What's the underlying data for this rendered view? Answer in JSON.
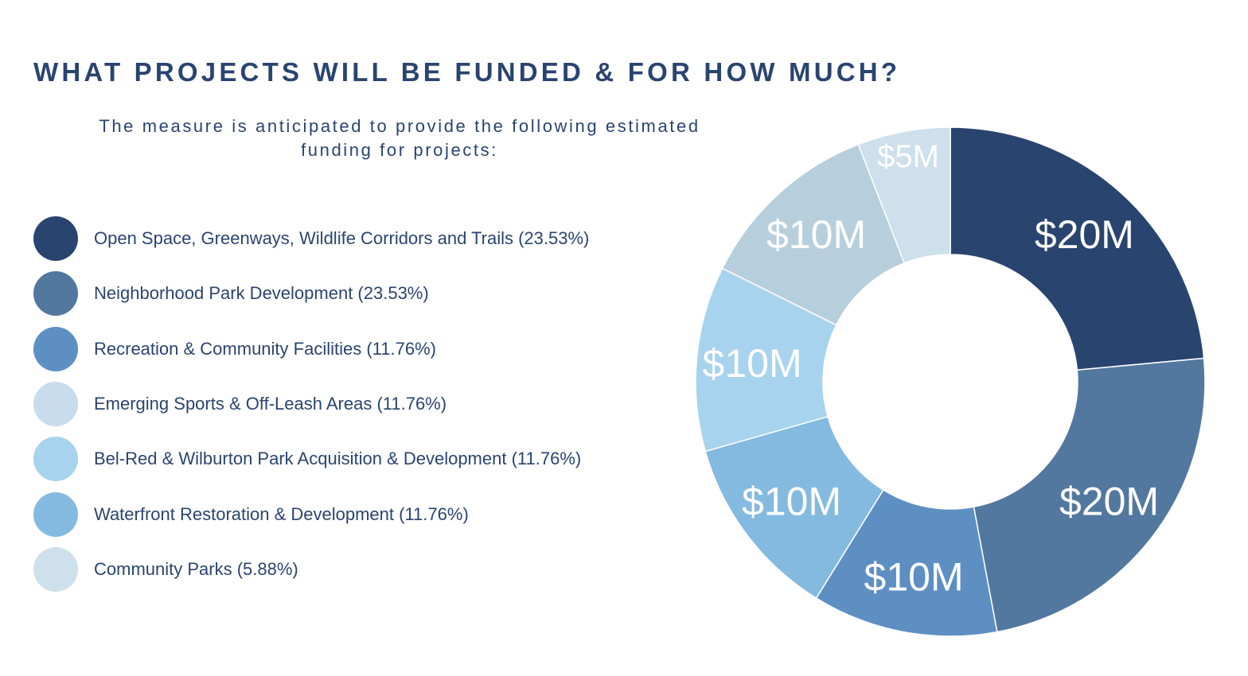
{
  "title": "WHAT PROJECTS WILL BE FUNDED & FOR HOW MUCH?",
  "subtitle": "The measure is anticipated to provide the following estimated funding for projects:",
  "chart_data": {
    "type": "pie",
    "donut": true,
    "title": "",
    "legend_position": "left",
    "slices": [
      {
        "label": "Open Space, Greenways, Wildlife Corridors and Trails (23.53%)",
        "value": 20,
        "value_label": "$20M",
        "percent": 23.53,
        "color": "#2a4470"
      },
      {
        "label": "Neighborhood Park Development (23.53%)",
        "value": 20,
        "value_label": "$20M",
        "percent": 23.53,
        "color": "#53789f"
      },
      {
        "label": "Recreation & Community Facilities (11.76%)",
        "value": 10,
        "value_label": "$10M",
        "percent": 11.76,
        "color": "#5d8fc3"
      },
      {
        "label": "Waterfront Restoration & Development (11.76%)",
        "value": 10,
        "value_label": "$10M",
        "percent": 11.76,
        "color": "#85bae0"
      },
      {
        "label": "Bel-Red & Wilburton Park Acquisition & Development (11.76%)",
        "value": 10,
        "value_label": "$10M",
        "percent": 11.76,
        "color": "#a8d3ee"
      },
      {
        "label": "Emerging Sports & Off-Leash Areas (11.76%)",
        "value": 10,
        "value_label": "$10M",
        "percent": 11.76,
        "color": "#b7cfdd"
      },
      {
        "label": "Community Parks (5.88%)",
        "value": 5,
        "value_label": "$5M",
        "percent": 5.88,
        "color": "#cde0ec"
      }
    ],
    "legend": [
      {
        "label": "Open Space, Greenways, Wildlife Corridors and Trails (23.53%)",
        "color": "#2a4470"
      },
      {
        "label": "Neighborhood Park Development (23.53%)",
        "color": "#53789f"
      },
      {
        "label": "Recreation & Community Facilities (11.76%)",
        "color": "#5d8fc3"
      },
      {
        "label": "Emerging Sports & Off-Leash Areas (11.76%)",
        "color": "#c8dceb"
      },
      {
        "label": "Bel-Red & Wilburton Park Acquisition & Development (11.76%)",
        "color": "#a8d3ee"
      },
      {
        "label": "Waterfront Restoration & Development (11.76%)",
        "color": "#85bae0"
      },
      {
        "label": "Community Parks (5.88%)",
        "color": "#cde0ec"
      }
    ]
  }
}
